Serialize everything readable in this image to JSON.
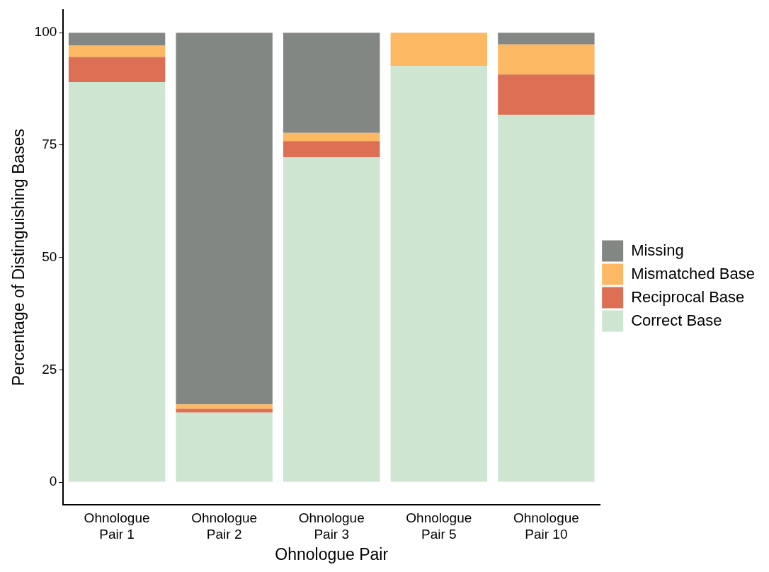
{
  "chart_data": {
    "type": "bar",
    "stacked": true,
    "xlabel": "Ohnologue Pair",
    "ylabel": "Percentage of Distinguishing Bases",
    "categories": [
      "Ohnologue Pair 1",
      "Ohnologue Pair 2",
      "Ohnologue Pair 3",
      "Ohnologue Pair 5",
      "Ohnologue Pair 10"
    ],
    "series": [
      {
        "name": "Correct Base",
        "color": "#cde5d1",
        "values": [
          89.0,
          15.5,
          72.3,
          92.6,
          81.7
        ]
      },
      {
        "name": "Reciprocal Base",
        "color": "#dd6f55",
        "values": [
          5.6,
          0.8,
          3.6,
          0,
          9.0
        ]
      },
      {
        "name": "Mismatched Base",
        "color": "#fdb863",
        "values": [
          2.6,
          1.0,
          1.8,
          7.4,
          6.7
        ]
      },
      {
        "name": "Missing",
        "color": "#838784",
        "values": [
          2.8,
          82.7,
          22.3,
          0,
          2.6
        ]
      }
    ],
    "ylim": [
      -5,
      105
    ],
    "yticks": [
      0,
      25,
      50,
      75,
      100
    ],
    "grid": false,
    "legend": "right"
  }
}
